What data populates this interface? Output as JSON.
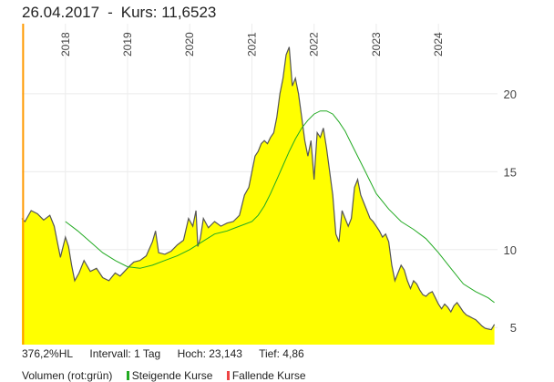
{
  "header": {
    "date": "26.04.2017",
    "separator": "-",
    "price_label": "Kurs:",
    "price_value": "11,6523"
  },
  "stats": {
    "hl": "376,2%HL",
    "interval": "Intervall: 1 Tag",
    "high": "Hoch:  23,143",
    "low": "Tief:   4,86"
  },
  "legend": {
    "volume": "Volumen (rot:grün)",
    "rising": "Steigende Kurse",
    "falling": "Fallende Kurse",
    "rising_color": "#22aa22",
    "falling_color": "#ee4444"
  },
  "chart_data": {
    "type": "area",
    "title": "",
    "xlabel": "",
    "ylabel": "",
    "x_tick_labels": [
      "2018",
      "2019",
      "2020",
      "2021",
      "2022",
      "2023",
      "2024"
    ],
    "y_tick_labels": [
      "5",
      "10",
      "15",
      "20"
    ],
    "ylim": [
      3.9,
      24.5
    ],
    "xlim": [
      2017.3,
      2024.95
    ],
    "grid": true,
    "colors": {
      "price_fill": "#ffff00",
      "price_line": "#555555",
      "ma": "#22aa22",
      "marker": "#ff9900"
    },
    "series": [
      {
        "x": [
          2017.3,
          2017.35,
          2017.45,
          2017.55,
          2017.65,
          2017.75,
          2017.82,
          2017.87,
          2017.92,
          2018.0,
          2018.05,
          2018.1,
          2018.15,
          2018.22,
          2018.3,
          2018.4,
          2018.5,
          2018.6,
          2018.7,
          2018.8,
          2018.88,
          2018.95,
          2019.02,
          2019.1,
          2019.2,
          2019.3,
          2019.4,
          2019.45,
          2019.5,
          2019.6,
          2019.7,
          2019.8,
          2019.9,
          2019.98,
          2020.05,
          2020.1,
          2020.13,
          2020.17,
          2020.22,
          2020.3,
          2020.4,
          2020.5,
          2020.6,
          2020.7,
          2020.8,
          2020.88,
          2020.95,
          2021.0,
          2021.05,
          2021.1,
          2021.15,
          2021.2,
          2021.25,
          2021.3,
          2021.35,
          2021.4,
          2021.45,
          2021.5,
          2021.55,
          2021.6,
          2021.65,
          2021.7,
          2021.75,
          2021.8,
          2021.85,
          2021.9,
          2021.95,
          2022.0,
          2022.05,
          2022.1,
          2022.15,
          2022.2,
          2022.25,
          2022.3,
          2022.35,
          2022.4,
          2022.45,
          2022.5,
          2022.55,
          2022.6,
          2022.65,
          2022.7,
          2022.75,
          2022.8,
          2022.85,
          2022.9,
          2022.95,
          2023.0,
          2023.05,
          2023.1,
          2023.15,
          2023.2,
          2023.25,
          2023.3,
          2023.35,
          2023.4,
          2023.45,
          2023.5,
          2023.55,
          2023.6,
          2023.65,
          2023.7,
          2023.75,
          2023.8,
          2023.85,
          2023.9,
          2023.95,
          2024.0,
          2024.05,
          2024.1,
          2024.15,
          2024.2,
          2024.25,
          2024.3,
          2024.35,
          2024.4,
          2024.45,
          2024.5,
          2024.55,
          2024.6,
          2024.65,
          2024.7,
          2024.75,
          2024.8,
          2024.85,
          2024.9
        ],
        "values": [
          12.0,
          11.8,
          12.5,
          12.3,
          11.9,
          12.2,
          11.5,
          10.5,
          9.5,
          10.8,
          10.2,
          9.0,
          8.0,
          8.5,
          9.3,
          8.6,
          8.8,
          8.2,
          8.0,
          8.5,
          8.3,
          8.6,
          8.9,
          9.2,
          9.3,
          9.6,
          10.5,
          11.2,
          9.8,
          9.7,
          9.9,
          10.3,
          10.6,
          12.0,
          11.5,
          12.5,
          10.2,
          10.7,
          12.0,
          11.4,
          11.8,
          11.5,
          11.7,
          11.8,
          12.2,
          13.5,
          14.0,
          15.0,
          16.0,
          16.3,
          16.8,
          17.0,
          16.8,
          17.2,
          17.5,
          18.5,
          20.0,
          21.0,
          22.5,
          23.0,
          20.5,
          21.0,
          20.0,
          18.5,
          17.0,
          16.0,
          17.0,
          14.5,
          17.5,
          17.2,
          17.8,
          16.5,
          15.0,
          13.5,
          11.0,
          10.5,
          12.5,
          12.0,
          11.5,
          12.0,
          14.0,
          14.5,
          13.5,
          13.0,
          12.5,
          12.0,
          11.8,
          11.5,
          11.2,
          10.8,
          11.0,
          10.5,
          9.0,
          8.0,
          8.5,
          9.0,
          8.7,
          8.0,
          7.5,
          8.0,
          7.8,
          7.4,
          7.1,
          7.0,
          7.2,
          7.3,
          6.9,
          6.5,
          6.2,
          6.5,
          6.3,
          6.0,
          6.4,
          6.6,
          6.3,
          6.0,
          5.8,
          5.7,
          5.6,
          5.5,
          5.3,
          5.1,
          4.95,
          4.9,
          4.86,
          5.2
        ]
      },
      {
        "name": "",
        "x": [
          2018.0,
          2018.2,
          2018.4,
          2018.6,
          2018.8,
          2019.0,
          2019.2,
          2019.4,
          2019.6,
          2019.8,
          2020.0,
          2020.2,
          2020.4,
          2020.6,
          2020.8,
          2021.0,
          2021.1,
          2021.2,
          2021.3,
          2021.4,
          2021.5,
          2021.6,
          2021.7,
          2021.8,
          2021.9,
          2022.0,
          2022.1,
          2022.2,
          2022.3,
          2022.4,
          2022.5,
          2022.6,
          2022.8,
          2023.0,
          2023.2,
          2023.4,
          2023.6,
          2023.8,
          2024.0,
          2024.2,
          2024.4,
          2024.6,
          2024.8,
          2024.9
        ],
        "values": [
          11.8,
          11.2,
          10.5,
          9.8,
          9.3,
          8.9,
          8.8,
          9.0,
          9.3,
          9.6,
          10.0,
          10.5,
          11.0,
          11.2,
          11.5,
          11.8,
          12.2,
          12.8,
          13.6,
          14.5,
          15.4,
          16.3,
          17.1,
          17.8,
          18.3,
          18.7,
          18.9,
          18.9,
          18.7,
          18.2,
          17.6,
          16.8,
          15.2,
          13.6,
          12.6,
          11.8,
          11.3,
          10.7,
          9.8,
          8.8,
          7.8,
          7.3,
          6.9,
          6.6
        ]
      }
    ],
    "marker_x": 2017.32
  }
}
